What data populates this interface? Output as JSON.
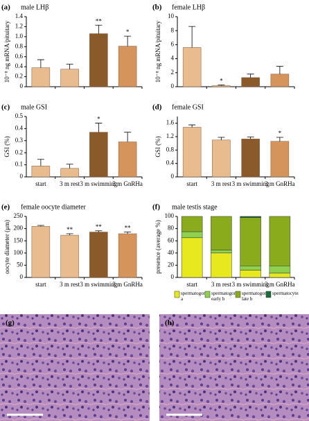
{
  "chart_data": [
    {
      "type": "bar",
      "label": "(a)",
      "title": "male LHβ",
      "ylabel": "10⁻⁸ ng mRNA/pituitary",
      "categories": [
        null,
        null,
        null,
        null
      ],
      "values": [
        0.38,
        0.35,
        1.06,
        0.81
      ],
      "errors": [
        0.16,
        0.1,
        0.17,
        0.2
      ],
      "sig": [
        null,
        null,
        "**",
        "*"
      ],
      "colors": [
        "#e8bc8e",
        "#e8bc8e",
        "#8b5a2b",
        "#d4945c"
      ],
      "ylim": [
        0,
        1.4
      ],
      "yticks": [
        0,
        0.2,
        0.4,
        0.6,
        0.8,
        {
          "value": 1,
          "label": "1.0"
        },
        1.2,
        1.4
      ]
    },
    {
      "type": "bar",
      "label": "(b)",
      "title": "female LHβ",
      "ylabel": "10⁻⁸ ng mRNA/pituitary",
      "categories": [
        null,
        null,
        null,
        null
      ],
      "values": [
        5.6,
        0.15,
        1.3,
        1.8
      ],
      "errors": [
        3.0,
        0.1,
        0.5,
        1.1
      ],
      "sig": [
        null,
        "*",
        null,
        null
      ],
      "colors": [
        "#e8bc8e",
        "#e8bc8e",
        "#8b5a2b",
        "#d4945c"
      ],
      "ylim": [
        0,
        10
      ],
      "yticks": [
        0,
        2,
        4,
        6,
        8,
        10
      ]
    },
    {
      "type": "bar",
      "label": "(c)",
      "title": "male GSI",
      "ylabel": "GSI (%)",
      "categories": [
        "start",
        "3 m rest",
        "3 m swimming",
        "3 m GnRHa"
      ],
      "values": [
        0.09,
        0.07,
        0.37,
        0.29
      ],
      "errors": [
        0.055,
        0.035,
        0.075,
        0.08
      ],
      "sig": [
        null,
        null,
        "*",
        null
      ],
      "colors": [
        "#e8bc8e",
        "#e8bc8e",
        "#8b5a2b",
        "#d4945c"
      ],
      "ylim": [
        0,
        0.5
      ],
      "yticks": [
        0,
        0.1,
        0.2,
        0.3,
        0.4,
        0.5
      ]
    },
    {
      "type": "bar",
      "label": "(d)",
      "title": "female GSI",
      "ylabel": "GSI (%)",
      "categories": [
        "start",
        "3 m rest",
        "3 m swimming",
        "3 m GnRHa"
      ],
      "values": [
        1.48,
        1.1,
        1.13,
        1.06
      ],
      "errors": [
        0.07,
        0.08,
        0.06,
        0.12
      ],
      "sig": [
        null,
        null,
        null,
        "*"
      ],
      "colors": [
        "#e8bc8e",
        "#e8bc8e",
        "#8b5a2b",
        "#d4945c"
      ],
      "ylim": [
        0,
        1.8
      ],
      "yticks": [
        0,
        0.4,
        0.8,
        1.2,
        1.6
      ]
    },
    {
      "type": "bar",
      "label": "(e)",
      "title": "female oocyte diameter",
      "ylabel": "oocyte diameter (μm)",
      "categories": [
        "start",
        "3 m rest",
        "3 m swimming",
        "3 m GnRHa"
      ],
      "values": [
        209,
        173,
        186,
        179
      ],
      "errors": [
        4,
        6,
        5,
        7
      ],
      "sig": [
        null,
        "**",
        "**",
        "**"
      ],
      "colors": [
        "#e8bc8e",
        "#e8bc8e",
        "#8b5a2b",
        "#d4945c"
      ],
      "ylim": [
        0,
        250
      ],
      "yticks": [
        0,
        50,
        100,
        150,
        200,
        250
      ]
    },
    {
      "type": "stacked_bar",
      "label": "(f)",
      "title": "male testis stage",
      "ylabel": "presence (average %)",
      "categories": [
        "start",
        "3 m rest",
        "3 m swimming",
        "3 m GnRHa"
      ],
      "series": [
        {
          "name": "spermatogonia a",
          "color": "#e8e81e",
          "values": [
            65,
            40,
            12,
            7
          ]
        },
        {
          "name": "spermatogonia early b",
          "color": "#8fd14f",
          "values": [
            10,
            5,
            7,
            12
          ]
        },
        {
          "name": "spermatogonia late b",
          "color": "#8aab1c",
          "values": [
            25,
            55,
            79,
            81
          ]
        },
        {
          "name": "spermatocytes",
          "color": "#1a6b3a",
          "values": [
            0,
            0,
            2,
            0
          ]
        }
      ],
      "ylim": [
        0,
        100
      ],
      "yticks": [
        0,
        20,
        40,
        60,
        80,
        100
      ]
    }
  ],
  "images": [
    {
      "label": "(g)"
    },
    {
      "label": "(h)"
    }
  ]
}
